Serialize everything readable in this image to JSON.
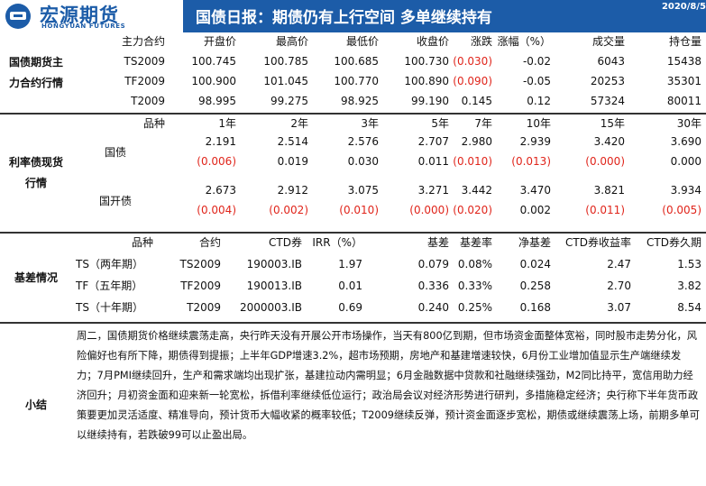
{
  "header": {
    "logo_cn": "宏源期货",
    "logo_en": "HONGYUAN FUTURES",
    "title": "国债日报：期债仍有上行空间 多单继续持有",
    "date": "2020/8/5"
  },
  "futures": {
    "label_lines": [
      "国债期货主",
      "力合约行情"
    ],
    "headers": [
      "主力合约",
      "开盘价",
      "最高价",
      "最低价",
      "收盘价",
      "涨跌",
      "涨幅（%）",
      "成交量",
      "持仓量"
    ],
    "rows": [
      [
        "TS2009",
        "100.745",
        "100.785",
        "100.685",
        "100.730",
        "(0.030)",
        "-0.02",
        "6043",
        "15438"
      ],
      [
        "TF2009",
        "100.900",
        "101.045",
        "100.770",
        "100.890",
        "(0.090)",
        "-0.05",
        "20253",
        "35301"
      ],
      [
        "T2009",
        "98.995",
        "99.275",
        "98.925",
        "99.190",
        "0.145",
        "0.12",
        "57324",
        "80011"
      ]
    ]
  },
  "spot": {
    "label_lines": [
      "利率债现货",
      "行情"
    ],
    "headers": [
      "品种",
      "1年",
      "2年",
      "3年",
      "5年",
      "7年",
      "10年",
      "15年",
      "30年"
    ],
    "groups": [
      {
        "name": "国债",
        "yields": [
          "2.191",
          "2.514",
          "2.576",
          "2.707",
          "2.980",
          "2.939",
          "3.420",
          "3.690"
        ],
        "changes": [
          "(0.006)",
          "0.019",
          "0.030",
          "0.011",
          "(0.010)",
          "(0.013)",
          "(0.000)",
          "0.000"
        ]
      },
      {
        "name": "国开债",
        "yields": [
          "2.673",
          "2.912",
          "3.075",
          "3.271",
          "3.442",
          "3.470",
          "3.821",
          "3.934"
        ],
        "changes": [
          "(0.004)",
          "(0.002)",
          "(0.010)",
          "(0.000)",
          "(0.020)",
          "0.002",
          "(0.011)",
          "(0.005)"
        ]
      }
    ]
  },
  "basis": {
    "label": "基差情况",
    "headers": [
      "品种",
      "合约",
      "CTD券",
      "IRR（%）",
      "基差",
      "基差率",
      "净基差",
      "CTD券收益率",
      "CTD券久期"
    ],
    "rows": [
      [
        "TS（两年期）",
        "TS2009",
        "190003.IB",
        "1.97",
        "0.079",
        "0.08%",
        "0.024",
        "2.47",
        "1.53"
      ],
      [
        "TF（五年期）",
        "TF2009",
        "190013.IB",
        "0.01",
        "0.336",
        "0.33%",
        "0.258",
        "2.70",
        "3.82"
      ],
      [
        "TS（十年期）",
        "T2009",
        "2000003.IB",
        "0.69",
        "0.240",
        "0.25%",
        "0.168",
        "3.07",
        "8.54"
      ]
    ]
  },
  "summary": {
    "label": "小结",
    "text": "周二，国债期货价格继续震荡走高，央行昨天没有开展公开市场操作，当天有800亿到期，但市场资金面整体宽裕，同时股市走势分化，风险偏好也有所下降，期债得到提振；上半年GDP增速3.2%，超市场预期，房地产和基建增速较快，6月份工业增加值显示生产端继续发力；7月PMI继续回升，生产和需求端均出现扩张，基建拉动内需明显；6月金融数据中贷款和社融继续强劲，M2同比持平，宽信用助力经济回升；月初资金面和迎来新一轮宽松，拆借利率继续低位运行；政治局会议对经济形势进行研判，多措施稳定经济；央行称下半年货币政策要更加灵活适度、精准导向，预计货币大幅收紧的概率较低；T2009继续反弹，预计资金面逐步宽松，期债或继续震荡上场，前期多单可以继续持有，若跌破99可以止盈出局。"
  }
}
